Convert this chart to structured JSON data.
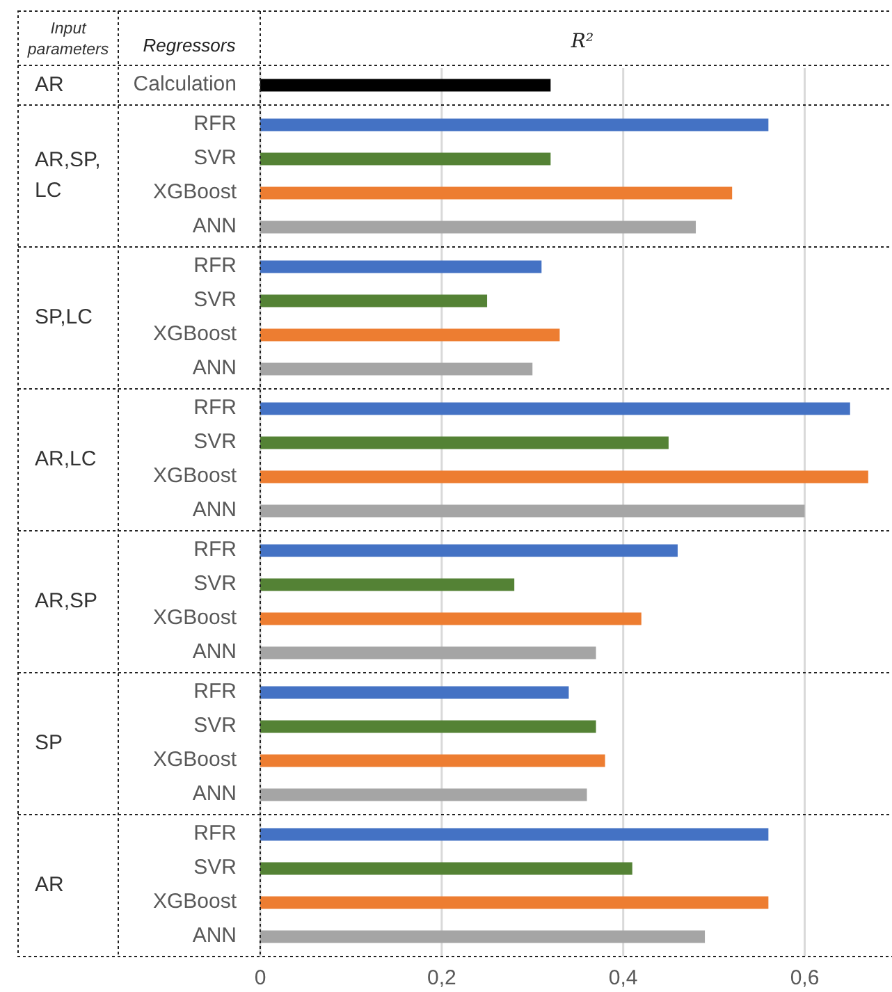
{
  "chart_data": {
    "type": "bar",
    "orientation": "horizontal",
    "xlabel": "R²",
    "ylabel": "Regressors",
    "legend_title": "Input parameters",
    "categories": [
      "Calculation",
      "RFR",
      "SVR",
      "XGBoost",
      "ANN",
      "RFR",
      "SVR",
      "XGBoost",
      "ANN",
      "RFR",
      "SVR",
      "XGBoost",
      "ANN",
      "RFR",
      "SVR",
      "XGBoost",
      "ANN",
      "RFR",
      "SVR",
      "XGBoost",
      "ANN",
      "RFR",
      "SVR",
      "XGBoost",
      "ANN"
    ],
    "annotations": [
      "AR",
      "AR,SP,LC",
      "SP,LC",
      "AR,LC",
      "AR,SP",
      "SP",
      "AR"
    ],
    "series": [
      {
        "colors": [
          "#000000",
          null,
          null,
          null,
          null,
          null,
          null,
          null,
          null,
          null,
          null,
          null,
          null,
          null,
          null,
          null,
          null,
          null,
          null,
          null,
          null,
          null,
          null,
          null,
          null
        ],
        "values": [
          0.32,
          null,
          null,
          null,
          null,
          null,
          null,
          null,
          null,
          null,
          null,
          null,
          null,
          null,
          null,
          null,
          null,
          null,
          null,
          null,
          null,
          null,
          null,
          null,
          null
        ]
      },
      {
        "colors": [
          null,
          "#4472c4",
          "#548235",
          "#ed7d31",
          "#a5a5a5",
          null,
          null,
          null,
          null,
          null,
          null,
          null,
          null,
          null,
          null,
          null,
          null,
          null,
          null,
          null,
          null,
          null,
          null,
          null,
          null
        ],
        "values": [
          null,
          0.56,
          0.32,
          0.52,
          0.48,
          null,
          null,
          null,
          null,
          null,
          null,
          null,
          null,
          null,
          null,
          null,
          null,
          null,
          null,
          null,
          null,
          null,
          null,
          null,
          null
        ]
      },
      {
        "colors": [
          null,
          null,
          null,
          null,
          null,
          "#4472c4",
          "#548235",
          "#ed7d31",
          "#a5a5a5",
          null,
          null,
          null,
          null,
          null,
          null,
          null,
          null,
          null,
          null,
          null,
          null,
          null,
          null,
          null,
          null
        ],
        "values": [
          null,
          null,
          null,
          null,
          null,
          0.31,
          0.25,
          0.33,
          0.3,
          null,
          null,
          null,
          null,
          null,
          null,
          null,
          null,
          null,
          null,
          null,
          null,
          null,
          null,
          null,
          null
        ]
      },
      {
        "colors": [
          null,
          null,
          null,
          null,
          null,
          null,
          null,
          null,
          null,
          "#4472c4",
          "#548235",
          "#ed7d31",
          "#a5a5a5",
          null,
          null,
          null,
          null,
          null,
          null,
          null,
          null,
          null,
          null,
          null,
          null
        ],
        "values": [
          null,
          null,
          null,
          null,
          null,
          null,
          null,
          null,
          null,
          0.65,
          0.45,
          0.67,
          0.6,
          null,
          null,
          null,
          null,
          null,
          null,
          null,
          null,
          null,
          null,
          null,
          null
        ]
      },
      {
        "colors": [
          null,
          null,
          null,
          null,
          null,
          null,
          null,
          null,
          null,
          null,
          null,
          null,
          null,
          "#4472c4",
          "#548235",
          "#ed7d31",
          "#a5a5a5",
          null,
          null,
          null,
          null,
          null,
          null,
          null,
          null
        ],
        "values": [
          null,
          null,
          null,
          null,
          null,
          null,
          null,
          null,
          null,
          null,
          null,
          null,
          null,
          0.46,
          0.28,
          0.42,
          0.37,
          null,
          null,
          null,
          null,
          null,
          null,
          null,
          null
        ]
      },
      {
        "colors": [
          null,
          null,
          null,
          null,
          null,
          null,
          null,
          null,
          null,
          null,
          null,
          null,
          null,
          null,
          null,
          null,
          null,
          "#4472c4",
          "#548235",
          "#ed7d31",
          "#a5a5a5",
          null,
          null,
          null,
          null
        ],
        "values": [
          null,
          null,
          null,
          null,
          null,
          null,
          null,
          null,
          null,
          null,
          null,
          null,
          null,
          null,
          null,
          null,
          null,
          0.34,
          0.37,
          0.38,
          0.36,
          null,
          null,
          null,
          null
        ]
      },
      {
        "colors": [
          null,
          null,
          null,
          null,
          null,
          null,
          null,
          null,
          null,
          null,
          null,
          null,
          null,
          null,
          null,
          null,
          null,
          null,
          null,
          null,
          null,
          "#4472c4",
          "#548235",
          "#ed7d31",
          "#a5a5a5"
        ],
        "values": [
          null,
          null,
          null,
          null,
          null,
          null,
          null,
          null,
          null,
          null,
          null,
          null,
          null,
          null,
          null,
          null,
          null,
          null,
          null,
          null,
          null,
          0.56,
          0.41,
          0.56,
          0.49
        ]
      }
    ],
    "xlim": [
      0,
      0.71
    ],
    "xticks": [
      0,
      {
        "value": 0.2,
        "label": "0,2"
      },
      {
        "value": 0.4,
        "label": "0,4"
      },
      {
        "value": 0.6,
        "label": "0,6"
      }
    ],
    "grid": "x"
  }
}
